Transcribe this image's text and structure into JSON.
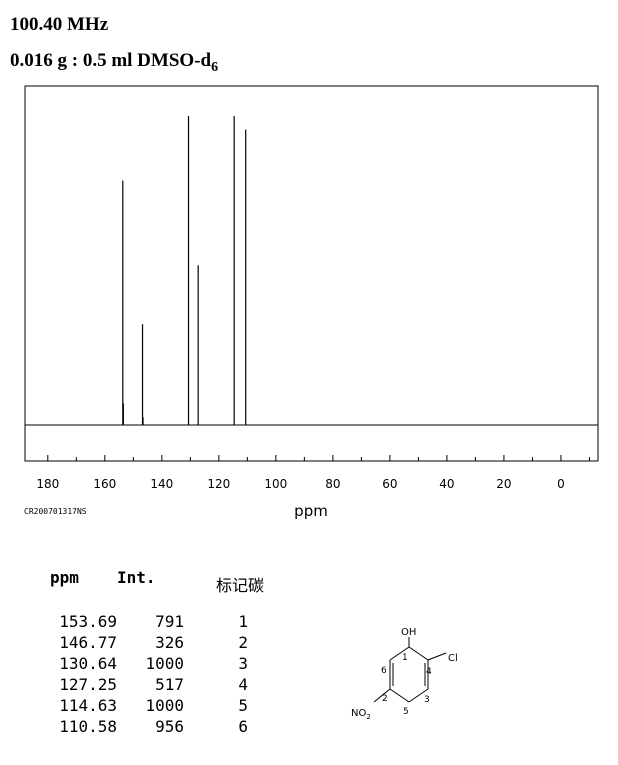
{
  "header": {
    "frequency": "100.40 MHz",
    "sample": "0.016 g : 0.5 ml DMSO-d",
    "sample_sub": "6"
  },
  "chart_data": {
    "type": "bar",
    "xlabel": "ppm",
    "xlim": [
      188,
      -13
    ],
    "x_reversed": true,
    "ylim": [
      0,
      1000
    ],
    "x_ticks": [
      180,
      160,
      140,
      120,
      100,
      80,
      60,
      40,
      20,
      0
    ],
    "code": "CR200701317NS",
    "peaks": [
      {
        "ppm": 153.69,
        "int": 791
      },
      {
        "ppm": 153.5,
        "int": 70
      },
      {
        "ppm": 146.77,
        "int": 326
      },
      {
        "ppm": 146.6,
        "int": 25
      },
      {
        "ppm": 130.64,
        "int": 1000
      },
      {
        "ppm": 127.25,
        "int": 517
      },
      {
        "ppm": 114.63,
        "int": 1000
      },
      {
        "ppm": 110.58,
        "int": 956
      }
    ]
  },
  "table": {
    "headers": {
      "ppm": "ppm",
      "int": "Int.",
      "carbon": "标记碳"
    },
    "rows": [
      {
        "ppm": "153.69",
        "int": "791",
        "carbon": "1"
      },
      {
        "ppm": "146.77",
        "int": "326",
        "carbon": "2"
      },
      {
        "ppm": "130.64",
        "int": "1000",
        "carbon": "3"
      },
      {
        "ppm": "127.25",
        "int": "517",
        "carbon": "4"
      },
      {
        "ppm": "114.63",
        "int": "1000",
        "carbon": "5"
      },
      {
        "ppm": "110.58",
        "int": "956",
        "carbon": "6"
      }
    ]
  },
  "structure": {
    "oh": "OH",
    "cl": "Cl",
    "no2": "NO",
    "no2_sub": "2",
    "atom_numbers": [
      "1",
      "2",
      "3",
      "4",
      "5",
      "6"
    ]
  }
}
